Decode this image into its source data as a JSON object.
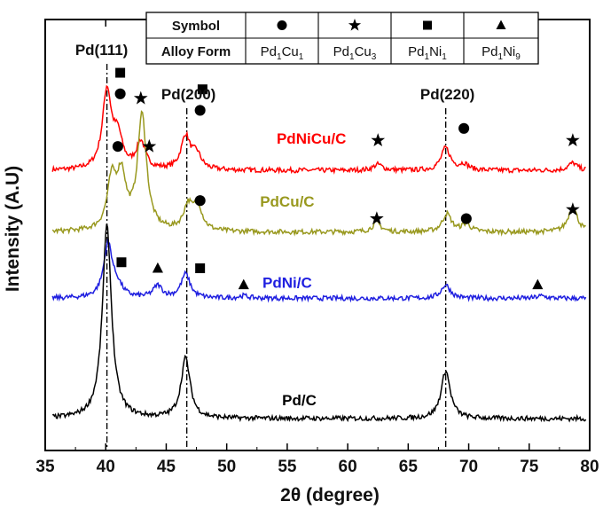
{
  "chart_data": {
    "type": "line",
    "xlabel": "2θ (degree)",
    "ylabel": "Intensity (A.U)",
    "xlim": [
      35,
      80
    ],
    "xticks": [
      35,
      40,
      45,
      50,
      55,
      60,
      65,
      70,
      75,
      80
    ],
    "y_ticks_shown": false,
    "reference_lines": [
      {
        "label": "Pd(111)",
        "x": 40.1
      },
      {
        "label": "Pd(200)",
        "x": 46.7
      },
      {
        "label": "Pd(220)",
        "x": 68.1
      }
    ],
    "series": [
      {
        "name": "PdNiCu/C",
        "color": "#ff0000",
        "baseline": 0.825,
        "peaks": [
          [
            40.1,
            0.26
          ],
          [
            41.0,
            0.1
          ],
          [
            42.9,
            0.09
          ],
          [
            46.6,
            0.11
          ],
          [
            47.5,
            0.05
          ],
          [
            62.5,
            0.02
          ],
          [
            68.1,
            0.075
          ],
          [
            69.6,
            0.02
          ],
          [
            78.6,
            0.025
          ]
        ]
      },
      {
        "name": "PdCu/C",
        "color": "#99991f",
        "baseline": 0.62,
        "peaks": [
          [
            40.5,
            0.16
          ],
          [
            41.3,
            0.17
          ],
          [
            43.0,
            0.38
          ],
          [
            46.8,
            0.08
          ],
          [
            47.6,
            0.08
          ],
          [
            62.4,
            0.03
          ],
          [
            68.2,
            0.06
          ],
          [
            69.8,
            0.025
          ],
          [
            78.6,
            0.085
          ]
        ]
      },
      {
        "name": "PdNi/C",
        "color": "#1f1fe0",
        "baseline": 0.4,
        "peaks": [
          [
            40.2,
            0.18
          ],
          [
            41.0,
            0.03
          ],
          [
            44.3,
            0.04
          ],
          [
            46.6,
            0.08
          ],
          [
            51.4,
            0.008
          ],
          [
            68.1,
            0.045
          ],
          [
            76.0,
            0.008
          ]
        ]
      },
      {
        "name": "Pd/C",
        "color": "#000000",
        "baseline": 0.0,
        "peaks": [
          [
            40.1,
            0.64
          ],
          [
            46.6,
            0.2
          ],
          [
            68.1,
            0.16
          ]
        ]
      }
    ],
    "markers": [
      {
        "shape": "square",
        "x": 41.2,
        "y": 1.185
      },
      {
        "shape": "circle",
        "x": 41.2,
        "y": 1.115
      },
      {
        "shape": "star",
        "x": 42.9,
        "y": 1.1
      },
      {
        "shape": "square",
        "x": 48.0,
        "y": 1.13
      },
      {
        "shape": "circle",
        "x": 47.8,
        "y": 1.06
      },
      {
        "shape": "star",
        "x": 62.5,
        "y": 0.96
      },
      {
        "shape": "circle",
        "x": 69.6,
        "y": 1.0
      },
      {
        "shape": "star",
        "x": 78.6,
        "y": 0.96
      },
      {
        "shape": "circle",
        "x": 41.0,
        "y": 0.94
      },
      {
        "shape": "star",
        "x": 43.6,
        "y": 0.94
      },
      {
        "shape": "circle",
        "x": 47.8,
        "y": 0.76
      },
      {
        "shape": "star",
        "x": 62.4,
        "y": 0.7
      },
      {
        "shape": "circle",
        "x": 69.8,
        "y": 0.7
      },
      {
        "shape": "star",
        "x": 78.6,
        "y": 0.73
      },
      {
        "shape": "square",
        "x": 41.3,
        "y": 0.555
      },
      {
        "shape": "triangle",
        "x": 44.3,
        "y": 0.535
      },
      {
        "shape": "square",
        "x": 47.8,
        "y": 0.535
      },
      {
        "shape": "triangle",
        "x": 51.4,
        "y": 0.48
      },
      {
        "shape": "triangle",
        "x": 75.7,
        "y": 0.48
      }
    ],
    "legend_table": {
      "headers": [
        "Symbol",
        "Alloy Form"
      ],
      "columns": [
        {
          "symbol": "circle",
          "form": "Pd",
          "s1": "1",
          "el": "Cu",
          "s2": "1"
        },
        {
          "symbol": "star",
          "form": "Pd",
          "s1": "1",
          "el": "Cu",
          "s2": "3"
        },
        {
          "symbol": "square",
          "form": "Pd",
          "s1": "1",
          "el": "Ni",
          "s2": "1"
        },
        {
          "symbol": "triangle",
          "form": "Pd",
          "s1": "1",
          "el": "Ni",
          "s2": "9"
        }
      ]
    }
  }
}
